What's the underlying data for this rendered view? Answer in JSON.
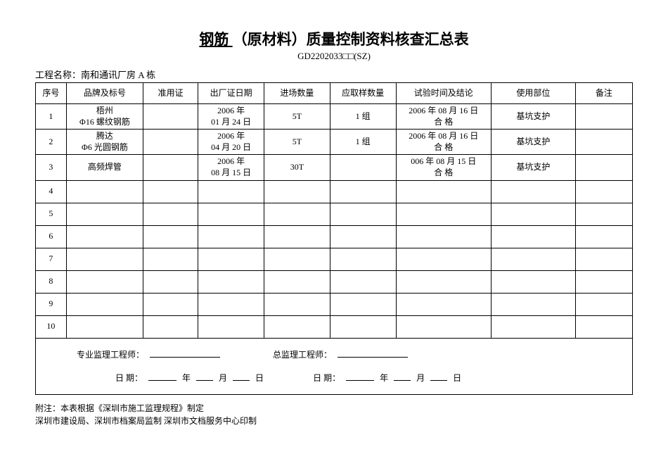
{
  "title": {
    "underlined": "  钢筋  ",
    "rest": "（原材料）质量控制资料核查汇总表",
    "code": "GD2202033□□(SZ)"
  },
  "project": {
    "label": "工程名称：",
    "name": "南和通讯厂房 A 栋"
  },
  "table": {
    "headers": {
      "seq": "序号",
      "brand": "品牌及标号",
      "permit": "准用证",
      "factory_date": "出厂证日期",
      "qty": "进场数量",
      "sample": "应取样数量",
      "test": "试验时间及结论",
      "use_part": "使用部位",
      "remark": "备注"
    },
    "rows": [
      {
        "seq": "1",
        "brand_l1": "梧州",
        "brand_l2": "Φ16 螺纹钢筋",
        "permit": "",
        "factory_l1": "2006 年",
        "factory_l2": "01 月 24 日",
        "qty": "5T",
        "sample": "1 组",
        "test_l1": "2006 年 08 月 16 日",
        "test_l2": "合    格",
        "use_part": "基坑支护",
        "remark": ""
      },
      {
        "seq": "2",
        "brand_l1": "腾达",
        "brand_l2": "Φ6 光圆钢筋",
        "permit": "",
        "factory_l1": "2006 年",
        "factory_l2": "04 月 20 日",
        "qty": "5T",
        "sample": "1 组",
        "test_l1": "2006 年 08 月 16 日",
        "test_l2": "合    格",
        "use_part": "基坑支护",
        "remark": ""
      },
      {
        "seq": "3",
        "brand_l1": "高频焊管",
        "brand_l2": "",
        "permit": "",
        "factory_l1": "2006 年",
        "factory_l2": "08 月 15 日",
        "qty": "30T",
        "sample": "",
        "test_l1": "006 年 08 月 15 日",
        "test_l2": "合    格",
        "use_part": "基坑支护",
        "remark": ""
      },
      {
        "seq": "4",
        "brand_l1": "",
        "brand_l2": "",
        "permit": "",
        "factory_l1": "",
        "factory_l2": "",
        "qty": "",
        "sample": "",
        "test_l1": "",
        "test_l2": "",
        "use_part": "",
        "remark": ""
      },
      {
        "seq": "5",
        "brand_l1": "",
        "brand_l2": "",
        "permit": "",
        "factory_l1": "",
        "factory_l2": "",
        "qty": "",
        "sample": "",
        "test_l1": "",
        "test_l2": "",
        "use_part": "",
        "remark": ""
      },
      {
        "seq": "6",
        "brand_l1": "",
        "brand_l2": "",
        "permit": "",
        "factory_l1": "",
        "factory_l2": "",
        "qty": "",
        "sample": "",
        "test_l1": "",
        "test_l2": "",
        "use_part": "",
        "remark": ""
      },
      {
        "seq": "7",
        "brand_l1": "",
        "brand_l2": "",
        "permit": "",
        "factory_l1": "",
        "factory_l2": "",
        "qty": "",
        "sample": "",
        "test_l1": "",
        "test_l2": "",
        "use_part": "",
        "remark": ""
      },
      {
        "seq": "8",
        "brand_l1": "",
        "brand_l2": "",
        "permit": "",
        "factory_l1": "",
        "factory_l2": "",
        "qty": "",
        "sample": "",
        "test_l1": "",
        "test_l2": "",
        "use_part": "",
        "remark": ""
      },
      {
        "seq": "9",
        "brand_l1": "",
        "brand_l2": "",
        "permit": "",
        "factory_l1": "",
        "factory_l2": "",
        "qty": "",
        "sample": "",
        "test_l1": "",
        "test_l2": "",
        "use_part": "",
        "remark": ""
      },
      {
        "seq": "10",
        "brand_l1": "",
        "brand_l2": "",
        "permit": "",
        "factory_l1": "",
        "factory_l2": "",
        "qty": "",
        "sample": "",
        "test_l1": "",
        "test_l2": "",
        "use_part": "",
        "remark": ""
      }
    ]
  },
  "signatures": {
    "pro_engineer_label": "专业监理工程师：",
    "chief_engineer_label": "总监理工程师：",
    "date_label": "日      期：",
    "year": "年",
    "month": "月",
    "day": "日"
  },
  "footer": {
    "note1": "附注：本表根据《深圳市施工监理规程》制定",
    "note2": "深圳市建设局、深圳市档案局监制   深圳市文档服务中心印制"
  },
  "styling": {
    "background_color": "#ffffff",
    "text_color": "#000000",
    "border_color": "#000000",
    "title_fontsize": 21,
    "body_fontsize": 13,
    "table_fontsize": 12,
    "font_family": "SimSun"
  }
}
